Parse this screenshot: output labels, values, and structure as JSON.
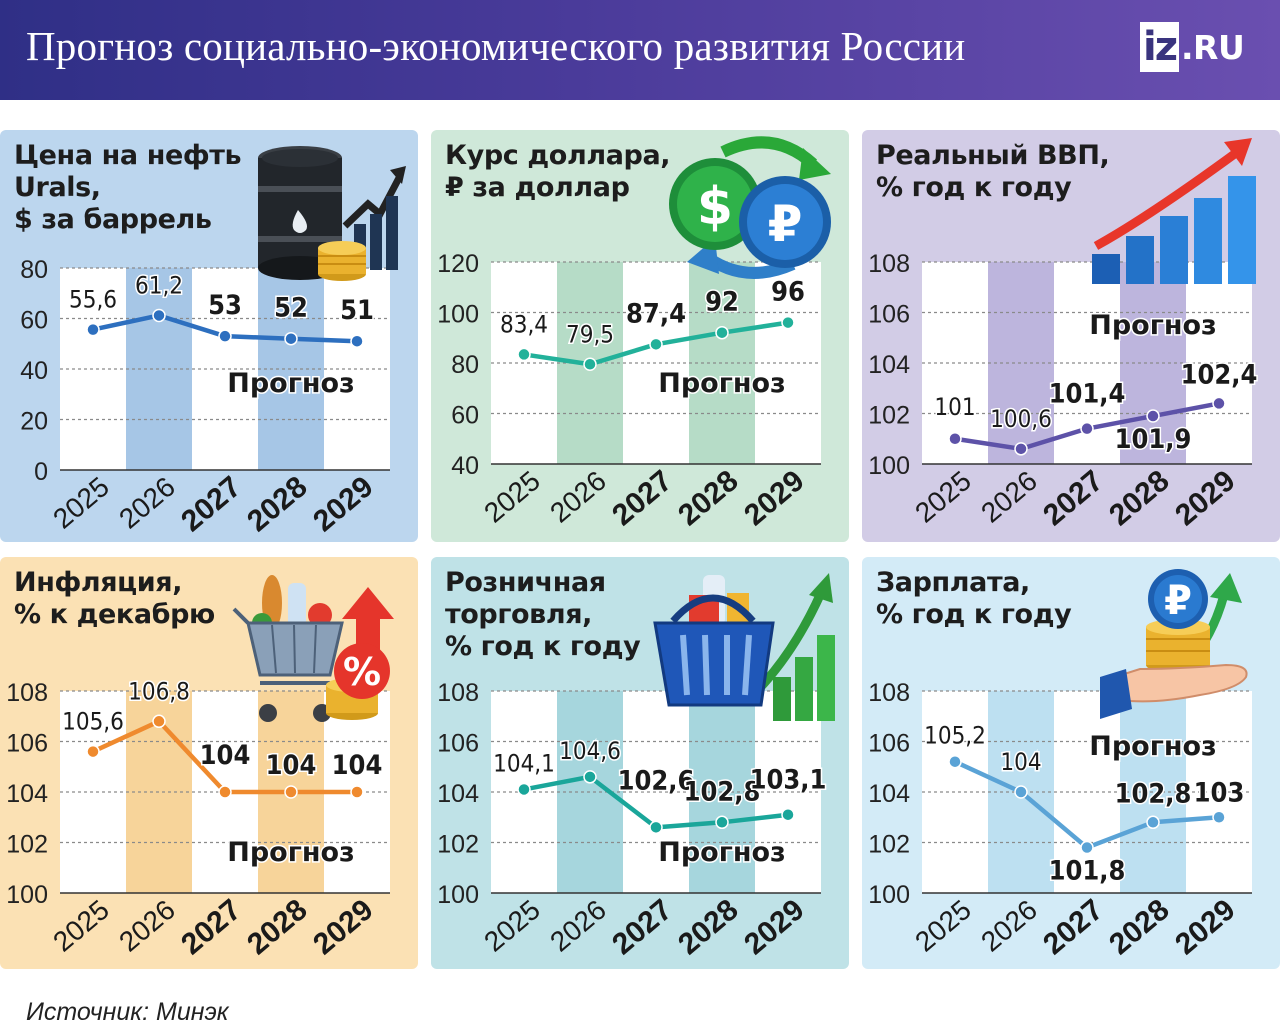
{
  "header": {
    "title": "Прогноз социально-экономического развития России",
    "logo_box": "iz",
    "logo_suffix": ".RU"
  },
  "source": "Источник: Минэк",
  "forecast_label": "Прогноз",
  "colors": {
    "header": "#3d3590",
    "oil_bg": "#bcd6ee",
    "oil_stripe": "#a6c6e6",
    "oil_line": "#2d6fbf",
    "usd_bg": "#cfe8d9",
    "usd_stripe": "#b6dcc7",
    "usd_line": "#22b19a",
    "gdp_bg": "#d2cce6",
    "gdp_stripe": "#bdb5dd",
    "gdp_line": "#5d52a8",
    "infl_bg": "#fbe1b4",
    "infl_stripe": "#f7d49a",
    "infl_line": "#ef8a2e",
    "retail_bg": "#bfe2e7",
    "retail_stripe": "#a6d6dd",
    "retail_line": "#1aa69a",
    "wage_bg": "#d3ebf7",
    "wage_stripe": "#bde0f1",
    "wage_line": "#5aa3d6"
  },
  "chart_data": [
    {
      "type": "line",
      "title": "Цена на нефть\nUrals,\n$ за баррель",
      "categories": [
        "2025",
        "2026",
        "2027",
        "2028",
        "2029"
      ],
      "values": [
        55.6,
        61.2,
        53,
        52,
        51
      ],
      "value_labels": [
        "55,6",
        "61,2",
        "53",
        "52",
        "51"
      ],
      "ylim": [
        0,
        80
      ],
      "yticks": [
        "0",
        "20",
        "40",
        "60",
        "80"
      ],
      "forecast_from": "2027",
      "illustration": "oil-barrel-icon"
    },
    {
      "type": "line",
      "title": "Курс доллара,\n₽ за доллар",
      "categories": [
        "2025",
        "2026",
        "2027",
        "2028",
        "2029"
      ],
      "values": [
        83.4,
        79.5,
        87.4,
        92,
        96
      ],
      "value_labels": [
        "83,4",
        "79,5",
        "87,4",
        "92",
        "96"
      ],
      "ylim": [
        40,
        120
      ],
      "yticks": [
        "40",
        "60",
        "80",
        "100",
        "120"
      ],
      "forecast_from": "2027",
      "illustration": "currency-exchange-icon"
    },
    {
      "type": "line",
      "title": "Реальный ВВП,\n% год к году",
      "categories": [
        "2025",
        "2026",
        "2027",
        "2028",
        "2029"
      ],
      "values": [
        101,
        100.6,
        101.4,
        101.9,
        102.4
      ],
      "value_labels": [
        "101",
        "100,6",
        "101,4",
        "101,9",
        "102,4"
      ],
      "ylim": [
        100,
        108
      ],
      "yticks": [
        "100",
        "102",
        "104",
        "106",
        "108"
      ],
      "forecast_from": "2027",
      "illustration": "growth-bars-icon"
    },
    {
      "type": "line",
      "title": "Инфляция,\n% к декабрю",
      "categories": [
        "2025",
        "2026",
        "2027",
        "2028",
        "2029"
      ],
      "values": [
        105.6,
        106.8,
        104,
        104,
        104
      ],
      "value_labels": [
        "105,6",
        "106,8",
        "104",
        "104",
        "104"
      ],
      "ylim": [
        100,
        108
      ],
      "yticks": [
        "100",
        "102",
        "104",
        "106",
        "108"
      ],
      "forecast_from": "2027",
      "illustration": "shopping-cart-icon"
    },
    {
      "type": "line",
      "title": "Розничная\nторговля,\n% год к году",
      "categories": [
        "2025",
        "2026",
        "2027",
        "2028",
        "2029"
      ],
      "values": [
        104.1,
        104.6,
        102.6,
        102.8,
        103.1
      ],
      "value_labels": [
        "104,1",
        "104,6",
        "102,6",
        "102,8",
        "103,1"
      ],
      "ylim": [
        100,
        108
      ],
      "yticks": [
        "100",
        "102",
        "104",
        "106",
        "108"
      ],
      "forecast_from": "2027",
      "illustration": "shopping-basket-icon"
    },
    {
      "type": "line",
      "title": "Зарплата,\n% год к году",
      "categories": [
        "2025",
        "2026",
        "2027",
        "2028",
        "2029"
      ],
      "values": [
        105.2,
        104,
        101.8,
        102.8,
        103
      ],
      "value_labels": [
        "105,2",
        "104",
        "101,8",
        "102,8",
        "103"
      ],
      "ylim": [
        100,
        108
      ],
      "yticks": [
        "100",
        "102",
        "104",
        "106",
        "108"
      ],
      "forecast_from": "2027",
      "illustration": "hand-coins-icon"
    }
  ]
}
